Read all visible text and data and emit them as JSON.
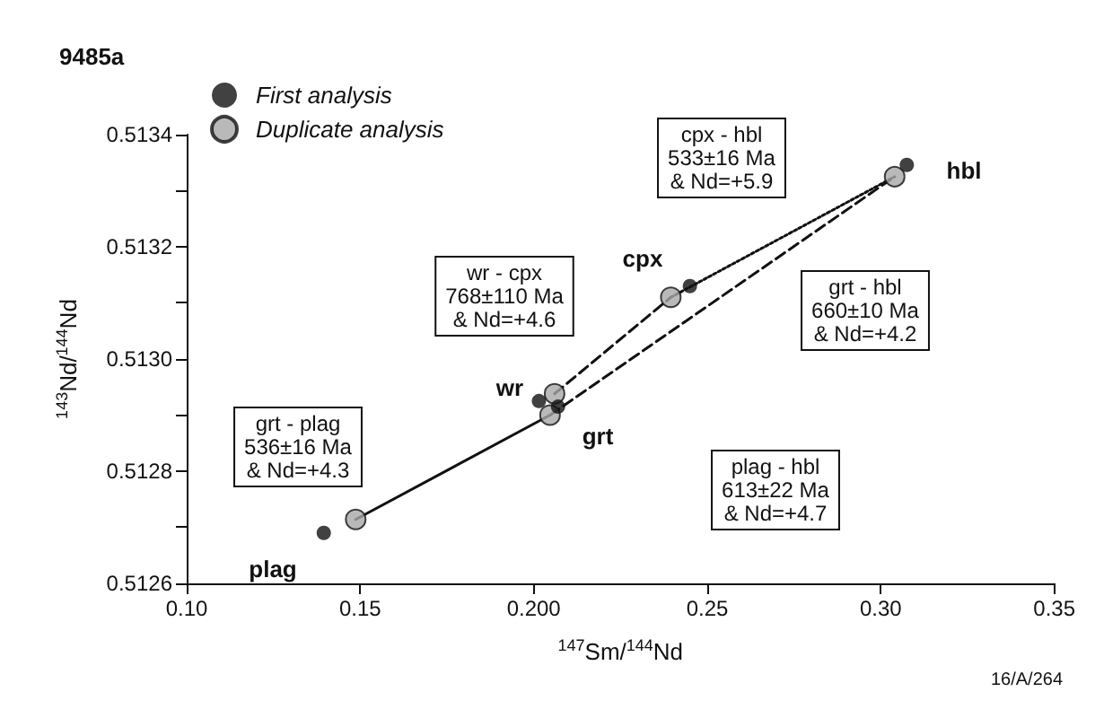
{
  "chart_data": {
    "type": "scatter",
    "title": "9485a",
    "xlabel": "$^{147}$Sm/$^{144}$Nd",
    "ylabel": "$^{143}$Nd/$^{144}$Nd",
    "xlim": [
      0.1,
      0.35
    ],
    "xticks": [
      {
        "value": 0.1,
        "label": "0.10"
      },
      0.15,
      {
        "value": 0.2,
        "label": "0.200"
      },
      0.25,
      {
        "value": 0.3,
        "label": "0.30"
      },
      0.35
    ],
    "ylim": [
      0.5126,
      0.5134
    ],
    "yticks": [
      0.5126,
      {
        "value": 0.5127,
        "label": null
      },
      0.5128,
      {
        "value": 0.5129,
        "label": null
      },
      {
        "value": 0.513,
        "label": "0.5130"
      },
      {
        "value": 0.5131,
        "label": null
      },
      0.5132,
      {
        "value": 0.5133,
        "label": null
      },
      0.5134
    ],
    "grid": false,
    "legend": "top left",
    "marker": "circle",
    "series": [
      {
        "name": "First analysis",
        "color": "#111111",
        "x": [
          0.1395,
          0.2015,
          0.207,
          0.245,
          0.3075
        ],
        "values": [
          0.51269,
          0.512925,
          0.512915,
          0.51313,
          0.513346
        ]
      },
      {
        "name": "Duplicate analysis",
        "color": "#a8a8a8",
        "x": [
          0.1487,
          0.206,
          0.2047,
          0.2395,
          0.304
        ],
        "values": [
          0.512714,
          0.512938,
          0.5129,
          0.51311,
          0.513325
        ]
      },
      {
        "type": "line",
        "color": "#111111",
        "line_style": "solid",
        "marker": "none",
        "x": [
          0.1487,
          0.2047
        ],
        "values": [
          0.512714,
          0.5129
        ]
      },
      {
        "type": "line",
        "color": "#111111",
        "line_style": "dashed",
        "marker": "none",
        "x": [
          0.2047,
          0.304
        ],
        "values": [
          0.5129,
          0.513325
        ]
      },
      {
        "type": "line",
        "color": "#111111",
        "line_style": "dashed",
        "marker": "none",
        "x": [
          0.206,
          0.2395
        ],
        "values": [
          0.512938,
          0.51311
        ]
      },
      {
        "type": "line",
        "color": "#111111",
        "line_style": "dotted",
        "marker": "none",
        "x": [
          0.2395,
          0.304
        ],
        "values": [
          0.51311,
          0.513325
        ]
      }
    ],
    "annotations": [
      "cpx - hbl\n533±16 Ma\n& Nd=+5.9",
      "wr - cpx\n768±110 Ma\n& Nd=+4.6",
      "grt - hbl\n660±10 Ma\n& Nd=+4.2",
      "grt - plag\n536±16 Ma\n& Nd=+4.3",
      "plag - hbl\n613±22 Ma\n& Nd=+4.7",
      "plag",
      "wr",
      "grt",
      "cpx",
      "hbl",
      "16/A/264"
    ]
  }
}
